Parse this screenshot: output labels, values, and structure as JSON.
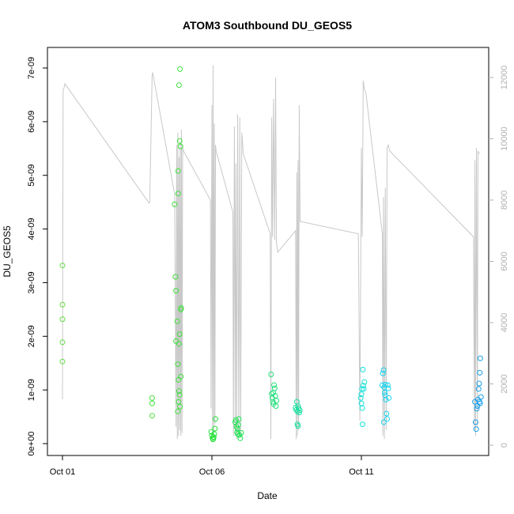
{
  "chart_data": {
    "type": "scatter",
    "title": "ATOM3 Southbound DU_GEOS5",
    "xlabel": "Date",
    "ylabel": "DU_GEOS5",
    "x_ticks": [
      {
        "day": 1,
        "label": "Oct 01"
      },
      {
        "day": 6,
        "label": "Oct 06"
      },
      {
        "day": 11,
        "label": "Oct 11"
      }
    ],
    "xlim": [
      1.0,
      15.45
    ],
    "ylim": [
      0,
      7.2e-09
    ],
    "y_ticks": [
      {
        "value": 0,
        "label": "0e+00"
      },
      {
        "value": 1e-09,
        "label": "1e-09"
      },
      {
        "value": 2e-09,
        "label": "2e-09"
      },
      {
        "value": 3e-09,
        "label": "3e-09"
      },
      {
        "value": 4e-09,
        "label": "4e-09"
      },
      {
        "value": 5e-09,
        "label": "5e-09"
      },
      {
        "value": 6e-09,
        "label": "6e-09"
      },
      {
        "value": 7e-09,
        "label": "7e-09"
      }
    ],
    "y2lim": [
      0,
      12500
    ],
    "y2_ticks": [
      {
        "value": 0,
        "label": "0"
      },
      {
        "value": 2000,
        "label": "2000"
      },
      {
        "value": 4000,
        "label": "4000"
      },
      {
        "value": 6000,
        "label": "6000"
      },
      {
        "value": 8000,
        "label": "8000"
      },
      {
        "value": 10000,
        "label": "10000"
      },
      {
        "value": 12000,
        "label": "12000"
      }
    ],
    "grid": false,
    "points": [
      {
        "x": 1.0,
        "y": 3.32e-09,
        "color": "#66dd44"
      },
      {
        "x": 1.0,
        "y": 2.59e-09,
        "color": "#66dd44"
      },
      {
        "x": 1.0,
        "y": 2.32e-09,
        "color": "#66dd44"
      },
      {
        "x": 1.0,
        "y": 1.89e-09,
        "color": "#66dd44"
      },
      {
        "x": 1.0,
        "y": 1.53e-09,
        "color": "#66dd44"
      },
      {
        "x": 4.0,
        "y": 8.5e-10,
        "color": "#44e03c"
      },
      {
        "x": 4.0,
        "y": 7.5e-10,
        "color": "#44e03c"
      },
      {
        "x": 4.0,
        "y": 5.2e-10,
        "color": "#44e03c"
      },
      {
        "x": 4.75,
        "y": 4.46e-09,
        "color": "#3ee03c"
      },
      {
        "x": 4.78,
        "y": 3.11e-09,
        "color": "#3ee03c"
      },
      {
        "x": 4.8,
        "y": 2.85e-09,
        "color": "#3ee03c"
      },
      {
        "x": 4.84,
        "y": 2.28e-09,
        "color": "#3ee03c"
      },
      {
        "x": 4.8,
        "y": 1.91e-09,
        "color": "#3ee03c"
      },
      {
        "x": 4.86,
        "y": 1.48e-09,
        "color": "#3ee03c"
      },
      {
        "x": 4.88,
        "y": 1.19e-09,
        "color": "#3ee03c"
      },
      {
        "x": 4.86,
        "y": 6e-10,
        "color": "#3ee03c"
      },
      {
        "x": 4.88,
        "y": 7.8e-10,
        "color": "#3ee03c"
      },
      {
        "x": 4.9,
        "y": 9.8e-10,
        "color": "#3ee03c"
      },
      {
        "x": 4.92,
        "y": 9.1e-10,
        "color": "#3ee03c"
      },
      {
        "x": 4.93,
        "y": 6.9e-10,
        "color": "#3ee03c"
      },
      {
        "x": 4.96,
        "y": 1.25e-09,
        "color": "#3ee03c"
      },
      {
        "x": 4.9,
        "y": 1.86e-09,
        "color": "#3ee03c"
      },
      {
        "x": 4.92,
        "y": 2.04e-09,
        "color": "#3ee03c"
      },
      {
        "x": 4.96,
        "y": 2.5e-09,
        "color": "#3ee03c"
      },
      {
        "x": 4.97,
        "y": 2.53e-09,
        "color": "#3ee03c"
      },
      {
        "x": 4.87,
        "y": 4.66e-09,
        "color": "#3ee03c"
      },
      {
        "x": 4.87,
        "y": 5.08e-09,
        "color": "#3ee03c"
      },
      {
        "x": 4.92,
        "y": 5.64e-09,
        "color": "#3ee03c"
      },
      {
        "x": 4.95,
        "y": 5.54e-09,
        "color": "#3ee03c"
      },
      {
        "x": 4.9,
        "y": 6.68e-09,
        "color": "#3ee03c"
      },
      {
        "x": 4.93,
        "y": 6.98e-09,
        "color": "#3ee03c"
      },
      {
        "x": 5.98,
        "y": 2.2e-10,
        "color": "#22e035"
      },
      {
        "x": 6.0,
        "y": 1.5e-10,
        "color": "#22e035"
      },
      {
        "x": 6.02,
        "y": 1e-10,
        "color": "#22e035"
      },
      {
        "x": 6.04,
        "y": 8e-11,
        "color": "#22e035"
      },
      {
        "x": 6.06,
        "y": 1.2e-10,
        "color": "#22e035"
      },
      {
        "x": 6.08,
        "y": 1.8e-10,
        "color": "#22e035"
      },
      {
        "x": 6.1,
        "y": 2.8e-10,
        "color": "#22e035"
      },
      {
        "x": 6.12,
        "y": 4.6e-10,
        "color": "#22e035"
      },
      {
        "x": 6.05,
        "y": 1.2e-10,
        "color": "#22e035"
      },
      {
        "x": 6.78,
        "y": 4e-10,
        "color": "#1ee050"
      },
      {
        "x": 6.8,
        "y": 4.4e-10,
        "color": "#1ee050"
      },
      {
        "x": 6.82,
        "y": 3.2e-10,
        "color": "#1ee050"
      },
      {
        "x": 6.84,
        "y": 2.1e-10,
        "color": "#1ee050"
      },
      {
        "x": 6.86,
        "y": 1.8e-10,
        "color": "#1ee050"
      },
      {
        "x": 6.88,
        "y": 3.5e-10,
        "color": "#1ee050"
      },
      {
        "x": 6.9,
        "y": 4.6e-10,
        "color": "#1ee050"
      },
      {
        "x": 6.92,
        "y": 1.6e-10,
        "color": "#1ee050"
      },
      {
        "x": 6.95,
        "y": 1e-10,
        "color": "#1ee050"
      },
      {
        "x": 6.98,
        "y": 2e-10,
        "color": "#1ee050"
      },
      {
        "x": 6.85,
        "y": 2.8e-10,
        "color": "#1ee050"
      },
      {
        "x": 7.98,
        "y": 1.29e-09,
        "color": "#22e07a"
      },
      {
        "x": 8.0,
        "y": 9.3e-10,
        "color": "#22e07a"
      },
      {
        "x": 8.02,
        "y": 8.5e-10,
        "color": "#22e07a"
      },
      {
        "x": 8.04,
        "y": 7.8e-10,
        "color": "#22e07a"
      },
      {
        "x": 8.06,
        "y": 7.4e-10,
        "color": "#22e07a"
      },
      {
        "x": 8.08,
        "y": 1.09e-09,
        "color": "#22e07a"
      },
      {
        "x": 8.1,
        "y": 1.03e-09,
        "color": "#22e07a"
      },
      {
        "x": 8.12,
        "y": 8.9e-10,
        "color": "#22e07a"
      },
      {
        "x": 8.14,
        "y": 7e-10,
        "color": "#22e07a"
      },
      {
        "x": 8.16,
        "y": 8e-10,
        "color": "#22e07a"
      },
      {
        "x": 8.05,
        "y": 9.5e-10,
        "color": "#22e07a"
      },
      {
        "x": 8.8,
        "y": 6.7e-10,
        "color": "#18e0a0"
      },
      {
        "x": 8.82,
        "y": 6.3e-10,
        "color": "#18e0a0"
      },
      {
        "x": 8.84,
        "y": 7.8e-10,
        "color": "#18e0a0"
      },
      {
        "x": 8.86,
        "y": 6e-10,
        "color": "#18e0a0"
      },
      {
        "x": 8.88,
        "y": 7e-10,
        "color": "#18e0a0"
      },
      {
        "x": 8.9,
        "y": 6.6e-10,
        "color": "#18e0a0"
      },
      {
        "x": 8.92,
        "y": 5.8e-10,
        "color": "#18e0a0"
      },
      {
        "x": 8.86,
        "y": 3.6e-10,
        "color": "#18e0a0"
      },
      {
        "x": 8.88,
        "y": 3.3e-10,
        "color": "#18e0a0"
      },
      {
        "x": 8.94,
        "y": 6.2e-10,
        "color": "#18e0a0"
      },
      {
        "x": 10.98,
        "y": 8.5e-10,
        "color": "#14dfd8"
      },
      {
        "x": 11.0,
        "y": 9.2e-10,
        "color": "#14dfd8"
      },
      {
        "x": 11.02,
        "y": 1.02e-09,
        "color": "#14dfd8"
      },
      {
        "x": 11.0,
        "y": 7.5e-10,
        "color": "#14dfd8"
      },
      {
        "x": 11.03,
        "y": 6.6e-10,
        "color": "#14dfd8"
      },
      {
        "x": 11.05,
        "y": 1.38e-09,
        "color": "#14dfd8"
      },
      {
        "x": 11.04,
        "y": 3.6e-10,
        "color": "#14dfd8"
      },
      {
        "x": 11.06,
        "y": 1.08e-09,
        "color": "#14dfd8"
      },
      {
        "x": 11.1,
        "y": 1.15e-09,
        "color": "#14dfd8"
      },
      {
        "x": 11.08,
        "y": 1.02e-09,
        "color": "#14dfd8"
      },
      {
        "x": 11.7,
        "y": 1.09e-09,
        "color": "#19d4ee"
      },
      {
        "x": 11.72,
        "y": 1.31e-09,
        "color": "#19d4ee"
      },
      {
        "x": 11.74,
        "y": 1.37e-09,
        "color": "#19d4ee"
      },
      {
        "x": 11.76,
        "y": 1.05e-09,
        "color": "#19d4ee"
      },
      {
        "x": 11.78,
        "y": 9.5e-10,
        "color": "#19d4ee"
      },
      {
        "x": 11.8,
        "y": 9e-10,
        "color": "#19d4ee"
      },
      {
        "x": 11.82,
        "y": 8.2e-10,
        "color": "#19d4ee"
      },
      {
        "x": 11.84,
        "y": 5.6e-10,
        "color": "#19d4ee"
      },
      {
        "x": 11.86,
        "y": 4.6e-10,
        "color": "#19d4ee"
      },
      {
        "x": 11.88,
        "y": 1.09e-09,
        "color": "#19d4ee"
      },
      {
        "x": 11.9,
        "y": 1.03e-09,
        "color": "#19d4ee"
      },
      {
        "x": 11.92,
        "y": 8.5e-10,
        "color": "#19d4ee"
      },
      {
        "x": 11.75,
        "y": 4e-10,
        "color": "#19d4ee"
      },
      {
        "x": 11.8,
        "y": 1.1e-09,
        "color": "#19d4ee"
      },
      {
        "x": 14.8,
        "y": 7.8e-10,
        "color": "#1a9ee8"
      },
      {
        "x": 14.82,
        "y": 4e-10,
        "color": "#1a9ee8"
      },
      {
        "x": 14.84,
        "y": 2.7e-10,
        "color": "#1a9ee8"
      },
      {
        "x": 14.86,
        "y": 6.5e-10,
        "color": "#1a9ee8"
      },
      {
        "x": 14.88,
        "y": 7e-10,
        "color": "#1a9ee8"
      },
      {
        "x": 14.9,
        "y": 8.2e-10,
        "color": "#1a9ee8"
      },
      {
        "x": 14.92,
        "y": 1.02e-09,
        "color": "#1a9ee8"
      },
      {
        "x": 14.94,
        "y": 1.12e-09,
        "color": "#1a9ee8"
      },
      {
        "x": 14.96,
        "y": 1.32e-09,
        "color": "#1a9ee8"
      },
      {
        "x": 14.98,
        "y": 1.59e-09,
        "color": "#1a9ee8"
      },
      {
        "x": 15.0,
        "y": 8.7e-10,
        "color": "#1a9ee8"
      },
      {
        "x": 14.95,
        "y": 7.8e-10,
        "color": "#1a9ee8"
      },
      {
        "x": 14.97,
        "y": 7.5e-10,
        "color": "#1a9ee8"
      }
    ],
    "altitude_line": {
      "color": "#c8c8c8",
      "x": [
        1.0,
        1.02,
        1.05,
        1.08,
        3.9,
        3.92,
        4.0,
        4.02,
        4.75,
        4.8,
        4.82,
        4.84,
        4.86,
        4.88,
        4.9,
        4.92,
        4.94,
        4.96,
        4.98,
        5.0,
        5.02,
        5.05,
        5.95,
        5.97,
        6.0,
        6.02,
        6.04,
        6.06,
        6.08,
        6.1,
        6.12,
        6.14,
        6.7,
        6.72,
        6.75,
        6.78,
        6.8,
        6.83,
        6.86,
        6.9,
        6.93,
        6.96,
        7.0,
        7.05,
        7.95,
        7.97,
        8.0,
        8.03,
        8.06,
        8.1,
        8.13,
        8.16,
        8.2,
        8.8,
        8.82,
        8.84,
        8.86,
        8.88,
        8.9,
        8.92,
        8.95,
        10.9,
        10.95,
        11.0,
        11.03,
        11.06,
        11.1,
        11.15,
        11.7,
        11.72,
        11.74,
        11.77,
        11.8,
        11.83,
        11.86,
        11.9,
        11.95,
        14.75,
        14.78,
        14.8,
        14.82,
        14.85,
        14.88,
        14.9,
        14.95
      ],
      "y": [
        1500,
        11600,
        11650,
        11800,
        7900,
        7950,
        12100,
        12150,
        8200,
        600,
        9800,
        200,
        10200,
        300,
        9400,
        500,
        9900,
        300,
        10300,
        400,
        9700,
        9600,
        8000,
        1200,
        11100,
        300,
        12400,
        500,
        10500,
        700,
        9800,
        9600,
        7600,
        300,
        10400,
        500,
        9200,
        200,
        10800,
        400,
        10700,
        300,
        10200,
        9500,
        6900,
        200,
        10700,
        6800,
        11300,
        6700,
        12000,
        6600,
        6300,
        7000,
        200,
        8900,
        300,
        9300,
        500,
        11100,
        7300,
        6900,
        800,
        9700,
        6800,
        11900,
        11600,
        11500,
        6900,
        300,
        8100,
        200,
        8400,
        500,
        9700,
        9800,
        9600,
        6800,
        500,
        9300,
        300,
        9700,
        600,
        9600,
        9500
      ]
    }
  }
}
